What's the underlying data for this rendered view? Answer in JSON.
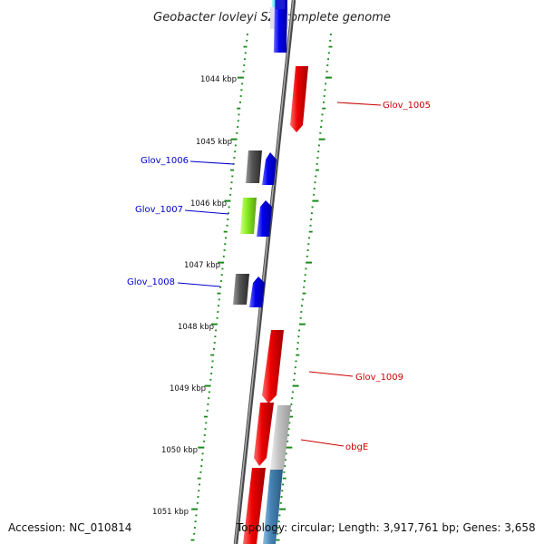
{
  "title": "Geobacter lovleyi SZ, complete genome",
  "accession": "Accession: NC_010814",
  "topology": "Topology: circular; Length: 3,917,761 bp; Genes: 3,658",
  "colors": {
    "ruler_tick": "#1a8a1a",
    "backbone": "#7a7a7a",
    "gene_red": "#ee0000",
    "gene_blue": "#0000ee",
    "gene_gray": "#555555",
    "gene_lime": "#88ee22",
    "gene_light_gray": "#c0c0c0",
    "gene_steel_blue": "#4682b4",
    "gene_cyan": "#22cccc",
    "label_red": "#cc0000",
    "label_blue": "#0000cc"
  },
  "scale_labels": [
    {
      "text": "1044 kbp"
    },
    {
      "text": "1045 kbp"
    },
    {
      "text": "1046 kbp"
    },
    {
      "text": "1047 kbp"
    },
    {
      "text": "1048 kbp"
    },
    {
      "text": "1049 kbp"
    },
    {
      "text": "1050 kbp"
    },
    {
      "text": "1051 kbp"
    }
  ],
  "gene_labels": [
    {
      "text": "Glov_1005",
      "side": "right",
      "color": "red"
    },
    {
      "text": "Glov_1006",
      "side": "left",
      "color": "blue"
    },
    {
      "text": "Glov_1007",
      "side": "left",
      "color": "blue"
    },
    {
      "text": "Glov_1008",
      "side": "left",
      "color": "blue"
    },
    {
      "text": "Glov_1009",
      "side": "right",
      "color": "red"
    },
    {
      "text": "obgE",
      "side": "right",
      "color": "red"
    }
  ]
}
